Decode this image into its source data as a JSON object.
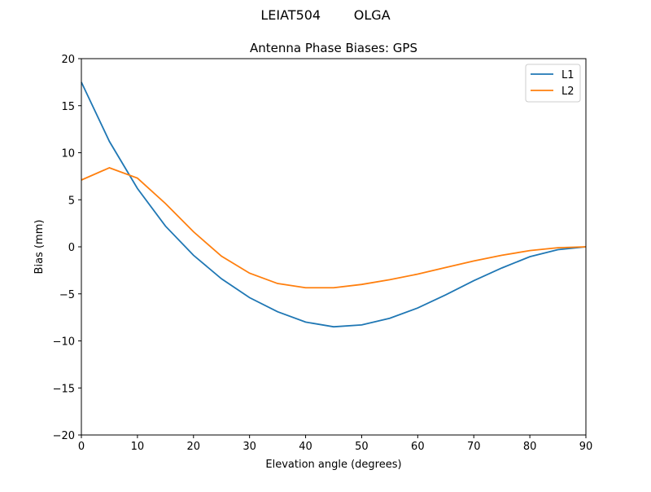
{
  "chart_data": {
    "type": "line",
    "suptitle": "LEIAT504        OLGA",
    "title": "Antenna Phase Biases: GPS",
    "xlabel": "Elevation angle (degrees)",
    "ylabel": "Bias (mm)",
    "xlim": [
      0,
      90
    ],
    "ylim": [
      -20,
      20
    ],
    "xticks": [
      0,
      10,
      20,
      30,
      40,
      50,
      60,
      70,
      80,
      90
    ],
    "yticks": [
      -20,
      -15,
      -10,
      -5,
      0,
      5,
      10,
      15,
      20
    ],
    "grid": false,
    "legend_placement": "top-right",
    "x": [
      0,
      5,
      10,
      15,
      20,
      25,
      30,
      35,
      40,
      45,
      50,
      55,
      60,
      65,
      70,
      75,
      80,
      85,
      90
    ],
    "series": [
      {
        "name": "L1",
        "color": "#1f77b4",
        "values": [
          17.5,
          11.2,
          6.2,
          2.2,
          -0.9,
          -3.4,
          -5.4,
          -6.9,
          -8.0,
          -8.5,
          -8.3,
          -7.6,
          -6.5,
          -5.1,
          -3.6,
          -2.25,
          -1.05,
          -0.3,
          0.0
        ]
      },
      {
        "name": "L2",
        "color": "#ff7f0e",
        "values": [
          7.1,
          8.4,
          7.3,
          4.6,
          1.6,
          -1.0,
          -2.8,
          -3.9,
          -4.35,
          -4.35,
          -4.0,
          -3.5,
          -2.9,
          -2.2,
          -1.5,
          -0.9,
          -0.4,
          -0.1,
          0.0
        ]
      }
    ]
  }
}
